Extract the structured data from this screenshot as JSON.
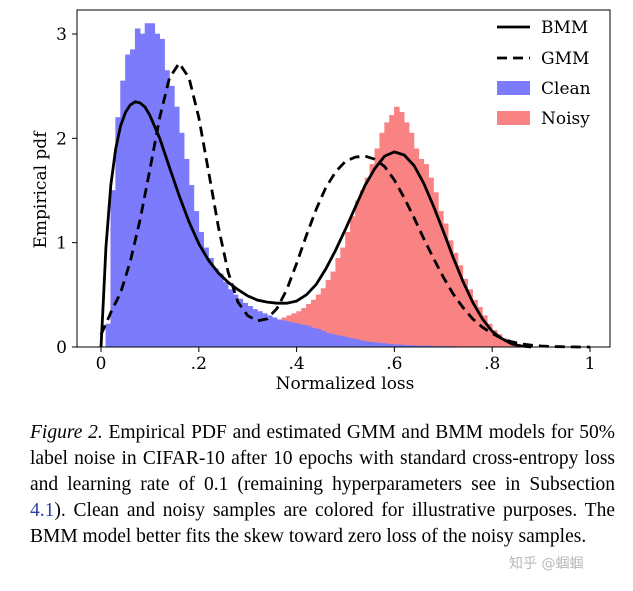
{
  "chart_data": {
    "type": "histogram",
    "xlabel": "Normalized loss",
    "ylabel": "Empirical pdf",
    "xlim": [
      0,
      1
    ],
    "ylim": [
      0,
      3.2
    ],
    "x_ticks": [
      {
        "value": 0,
        "label": "0"
      },
      {
        "value": 0.2,
        "label": ".2"
      },
      {
        "value": 0.4,
        "label": ".4"
      },
      {
        "value": 0.6,
        "label": ".6"
      },
      {
        "value": 0.8,
        "label": ".8"
      },
      {
        "value": 1,
        "label": "1"
      }
    ],
    "y_ticks": [
      {
        "value": 0,
        "label": "0"
      },
      {
        "value": 1,
        "label": "1"
      },
      {
        "value": 2,
        "label": "2"
      },
      {
        "value": 3,
        "label": "3"
      }
    ],
    "legend_position": "top-right",
    "grid": false,
    "bin_edges": [
      0,
      0.01,
      0.02,
      0.03,
      0.04,
      0.05,
      0.06,
      0.07,
      0.08,
      0.09,
      0.1,
      0.11,
      0.12,
      0.13,
      0.14,
      0.15,
      0.16,
      0.17,
      0.18,
      0.19,
      0.2,
      0.21,
      0.22,
      0.23,
      0.24,
      0.25,
      0.26,
      0.27,
      0.28,
      0.29,
      0.3,
      0.31,
      0.32,
      0.33,
      0.34,
      0.35,
      0.36,
      0.37,
      0.38,
      0.39,
      0.4,
      0.41,
      0.42,
      0.43,
      0.44,
      0.45,
      0.46,
      0.47,
      0.48,
      0.49,
      0.5,
      0.51,
      0.52,
      0.53,
      0.54,
      0.55,
      0.56,
      0.57,
      0.58,
      0.59,
      0.6,
      0.61,
      0.62,
      0.63,
      0.64,
      0.65,
      0.66,
      0.67,
      0.68,
      0.69,
      0.7,
      0.71,
      0.72,
      0.73,
      0.74,
      0.75,
      0.76,
      0.77,
      0.78,
      0.79,
      0.8,
      0.81,
      0.82,
      0.83,
      0.84,
      0.85,
      0.86,
      0.87,
      0.88,
      0.89,
      0.9
    ],
    "series": [
      {
        "name": "Clean",
        "kind": "histogram",
        "color": "#7b7bfb",
        "values": [
          0,
          0.22,
          1.5,
          2.2,
          2.55,
          2.8,
          2.85,
          3.05,
          3.0,
          3.1,
          3.1,
          3.0,
          2.95,
          2.65,
          2.5,
          2.3,
          2.05,
          1.8,
          1.55,
          1.3,
          1.1,
          0.95,
          0.85,
          0.75,
          0.7,
          0.62,
          0.55,
          0.5,
          0.46,
          0.42,
          0.39,
          0.36,
          0.34,
          0.32,
          0.3,
          0.28,
          0.26,
          0.25,
          0.24,
          0.23,
          0.22,
          0.21,
          0.2,
          0.18,
          0.17,
          0.15,
          0.13,
          0.12,
          0.11,
          0.1,
          0.09,
          0.08,
          0.07,
          0.06,
          0.05,
          0.045,
          0.04,
          0.035,
          0.03,
          0.025,
          0.02,
          0.02,
          0.015,
          0.015,
          0.01,
          0.01,
          0.01,
          0.01,
          0.005,
          0.005,
          0.005,
          0.005,
          0,
          0,
          0,
          0,
          0,
          0,
          0,
          0,
          0,
          0,
          0,
          0,
          0,
          0,
          0,
          0,
          0,
          0
        ]
      },
      {
        "name": "Noisy",
        "kind": "histogram",
        "color": "#f98282",
        "values": [
          0,
          0,
          0,
          0,
          0,
          0,
          0,
          0,
          0,
          0,
          0,
          0,
          0,
          0,
          0,
          0,
          0.02,
          0.05,
          0.08,
          0.1,
          0.12,
          0.14,
          0.16,
          0.17,
          0.18,
          0.19,
          0.2,
          0.2,
          0.2,
          0.21,
          0.21,
          0.2,
          0.2,
          0.2,
          0.22,
          0.24,
          0.26,
          0.28,
          0.3,
          0.32,
          0.34,
          0.37,
          0.41,
          0.45,
          0.5,
          0.56,
          0.64,
          0.72,
          0.85,
          0.95,
          1.1,
          1.25,
          1.4,
          1.5,
          1.62,
          1.75,
          1.9,
          2.05,
          2.15,
          2.22,
          2.3,
          2.25,
          2.15,
          2.05,
          1.9,
          1.8,
          1.75,
          1.62,
          1.48,
          1.3,
          1.18,
          1.02,
          0.9,
          0.78,
          0.65,
          0.55,
          0.45,
          0.38,
          0.3,
          0.22,
          0.16,
          0.12,
          0.08,
          0.05,
          0.03,
          0.02,
          0.01,
          0.005,
          0,
          0
        ]
      },
      {
        "name": "BMM",
        "kind": "line",
        "style": "solid",
        "color": "#000000",
        "x": [
          0,
          0.005,
          0.01,
          0.02,
          0.03,
          0.04,
          0.05,
          0.06,
          0.07,
          0.08,
          0.09,
          0.1,
          0.12,
          0.14,
          0.16,
          0.18,
          0.2,
          0.22,
          0.24,
          0.26,
          0.28,
          0.3,
          0.32,
          0.34,
          0.36,
          0.38,
          0.4,
          0.42,
          0.44,
          0.46,
          0.48,
          0.5,
          0.52,
          0.54,
          0.56,
          0.58,
          0.6,
          0.62,
          0.64,
          0.66,
          0.68,
          0.7,
          0.72,
          0.74,
          0.76,
          0.78,
          0.8,
          0.82,
          0.84,
          0.86,
          0.88
        ],
        "y": [
          0.0,
          0.45,
          0.95,
          1.55,
          1.9,
          2.12,
          2.25,
          2.32,
          2.35,
          2.34,
          2.3,
          2.22,
          2.0,
          1.72,
          1.45,
          1.2,
          0.99,
          0.83,
          0.71,
          0.62,
          0.55,
          0.49,
          0.45,
          0.43,
          0.42,
          0.42,
          0.44,
          0.5,
          0.6,
          0.75,
          0.93,
          1.13,
          1.34,
          1.55,
          1.71,
          1.83,
          1.87,
          1.84,
          1.74,
          1.57,
          1.35,
          1.11,
          0.86,
          0.63,
          0.43,
          0.27,
          0.15,
          0.08,
          0.03,
          0.01,
          0.0
        ]
      },
      {
        "name": "GMM",
        "kind": "line",
        "style": "dashed",
        "color": "#000000",
        "x": [
          0,
          0.01,
          0.02,
          0.04,
          0.06,
          0.08,
          0.1,
          0.12,
          0.14,
          0.16,
          0.18,
          0.2,
          0.22,
          0.24,
          0.26,
          0.28,
          0.3,
          0.32,
          0.34,
          0.36,
          0.38,
          0.4,
          0.42,
          0.44,
          0.46,
          0.48,
          0.5,
          0.52,
          0.54,
          0.56,
          0.58,
          0.6,
          0.62,
          0.64,
          0.66,
          0.68,
          0.7,
          0.72,
          0.74,
          0.76,
          0.78,
          0.8,
          0.82,
          0.84,
          0.86,
          0.88,
          0.9,
          0.92,
          0.94,
          0.96,
          0.98,
          1.0
        ],
        "y": [
          0.12,
          0.22,
          0.33,
          0.52,
          0.82,
          1.22,
          1.7,
          2.2,
          2.58,
          2.72,
          2.58,
          2.2,
          1.68,
          1.15,
          0.72,
          0.43,
          0.3,
          0.25,
          0.27,
          0.37,
          0.55,
          0.8,
          1.07,
          1.32,
          1.53,
          1.68,
          1.78,
          1.82,
          1.83,
          1.8,
          1.73,
          1.6,
          1.43,
          1.24,
          1.04,
          0.85,
          0.67,
          0.51,
          0.38,
          0.27,
          0.19,
          0.13,
          0.08,
          0.05,
          0.03,
          0.018,
          0.01,
          0.005,
          0.003,
          0.001,
          0.0,
          0.0
        ]
      }
    ]
  },
  "caption": {
    "figure_label": "Figure 2.",
    "text_before_ref": " Empirical PDF and estimated GMM and BMM models for 50% label noise in CIFAR-10 after 10 epochs with standard cross-entropy loss and learning rate of 0.1 (remaining hyperparameters see in Subsection ",
    "ref": "4.1",
    "text_after_ref": "). Clean and noisy samples are colored for illustrative purposes.  The BMM model better fits the skew toward zero loss of the noisy samples."
  },
  "watermark": "知乎 @蝈蝈"
}
